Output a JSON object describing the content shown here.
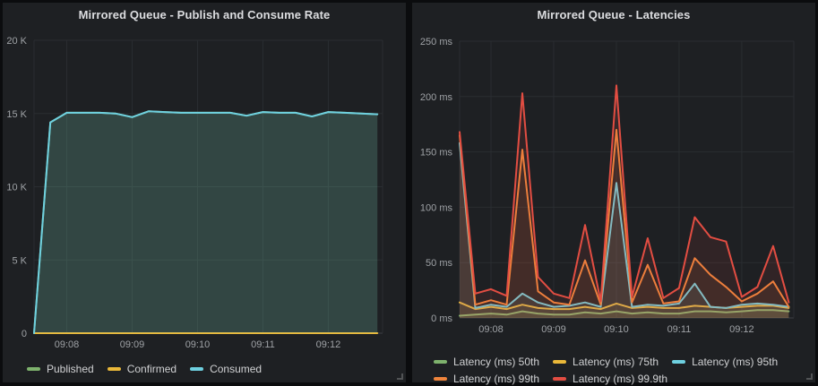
{
  "theme": {
    "page_bg": "#0b0c0e",
    "panel_bg": "#1e2023",
    "title_color": "#dcdde0",
    "axis_text_color": "#9fa2a6",
    "legend_text_color": "#d0d1d3",
    "grid_color": "#2a2d31",
    "axis_line_color": "#3e4145",
    "series_palette": {
      "green": "#7EB26D",
      "yellow": "#EAB839",
      "cyan": "#6ED0E0",
      "orange": "#EF843C",
      "red": "#E24D42"
    }
  },
  "panels": [
    {
      "title": "Mirrored Queue - Publish and Consume Rate"
    },
    {
      "title": "Mirrored Queue - Latencies"
    }
  ],
  "chart_data": [
    {
      "type": "area",
      "title": "Mirrored Queue - Publish and Consume Rate",
      "xlabel": "",
      "ylabel": "",
      "grid": true,
      "legend_position": "bottom",
      "x_domain_minutes": [
        7.5,
        12.83
      ],
      "x_times": [
        "09:07:30",
        "09:07:45",
        "09:08:00",
        "09:08:15",
        "09:08:30",
        "09:08:45",
        "09:09:00",
        "09:09:15",
        "09:09:30",
        "09:09:45",
        "09:10:00",
        "09:10:15",
        "09:10:30",
        "09:10:45",
        "09:11:00",
        "09:11:15",
        "09:11:30",
        "09:11:45",
        "09:12:00",
        "09:12:15",
        "09:12:30",
        "09:12:45"
      ],
      "x_minutes": [
        7.5,
        7.75,
        8,
        8.25,
        8.5,
        8.75,
        9,
        9.25,
        9.5,
        9.75,
        10,
        10.25,
        10.5,
        10.75,
        11,
        11.25,
        11.5,
        11.75,
        12,
        12.25,
        12.5,
        12.75
      ],
      "x_ticks": [
        {
          "minute": 8,
          "label": "09:08"
        },
        {
          "minute": 9,
          "label": "09:09"
        },
        {
          "minute": 10,
          "label": "09:10"
        },
        {
          "minute": 11,
          "label": "09:11"
        },
        {
          "minute": 12,
          "label": "09:12"
        }
      ],
      "ylim": [
        0,
        20000
      ],
      "y_ticks": [
        {
          "value": 0,
          "label": "0"
        },
        {
          "value": 5000,
          "label": "5 K"
        },
        {
          "value": 10000,
          "label": "10 K"
        },
        {
          "value": 15000,
          "label": "15 K"
        },
        {
          "value": 20000,
          "label": "20 K"
        }
      ],
      "series": [
        {
          "name": "Published",
          "color": "#7EB26D",
          "fill_opacity": 0.13,
          "values": [
            0,
            14400,
            15050,
            15050,
            15050,
            15000,
            14750,
            15150,
            15100,
            15050,
            15050,
            15050,
            15050,
            14850,
            15100,
            15050,
            15050,
            14800,
            15100,
            15050,
            15000,
            14950
          ]
        },
        {
          "name": "Confirmed",
          "color": "#EAB839",
          "fill_opacity": 0.13,
          "values": [
            0,
            0,
            0,
            0,
            0,
            0,
            0,
            0,
            0,
            0,
            0,
            0,
            0,
            0,
            0,
            0,
            0,
            0,
            0,
            0,
            0,
            0
          ]
        },
        {
          "name": "Consumed",
          "color": "#6ED0E0",
          "fill_opacity": 0.13,
          "values": [
            0,
            14400,
            15050,
            15050,
            15050,
            15000,
            14750,
            15150,
            15100,
            15050,
            15050,
            15050,
            15050,
            14850,
            15100,
            15050,
            15050,
            14800,
            15100,
            15050,
            15000,
            14950
          ]
        }
      ]
    },
    {
      "type": "area",
      "title": "Mirrored Queue - Latencies",
      "xlabel": "",
      "ylabel": "",
      "grid": true,
      "legend_position": "bottom",
      "x_domain_minutes": [
        7.5,
        12.83
      ],
      "x_times": [
        "09:07:30",
        "09:07:45",
        "09:08:00",
        "09:08:15",
        "09:08:30",
        "09:08:45",
        "09:09:00",
        "09:09:15",
        "09:09:30",
        "09:09:45",
        "09:10:00",
        "09:10:15",
        "09:10:30",
        "09:10:45",
        "09:11:00",
        "09:11:15",
        "09:11:30",
        "09:11:45",
        "09:12:00",
        "09:12:15",
        "09:12:30",
        "09:12:45"
      ],
      "x_minutes": [
        7.5,
        7.75,
        8,
        8.25,
        8.5,
        8.75,
        9,
        9.25,
        9.5,
        9.75,
        10,
        10.25,
        10.5,
        10.75,
        11,
        11.25,
        11.5,
        11.75,
        12,
        12.25,
        12.5,
        12.75
      ],
      "x_ticks": [
        {
          "minute": 8,
          "label": "09:08"
        },
        {
          "minute": 9,
          "label": "09:09"
        },
        {
          "minute": 10,
          "label": "09:10"
        },
        {
          "minute": 11,
          "label": "09:11"
        },
        {
          "minute": 12,
          "label": "09:12"
        }
      ],
      "ylim": [
        0,
        250
      ],
      "y_ticks": [
        {
          "value": 0,
          "label": "0 ms"
        },
        {
          "value": 50,
          "label": "50 ms"
        },
        {
          "value": 100,
          "label": "100 ms"
        },
        {
          "value": 150,
          "label": "150 ms"
        },
        {
          "value": 200,
          "label": "200 ms"
        },
        {
          "value": 250,
          "label": "250 ms"
        }
      ],
      "series": [
        {
          "name": "Latency (ms) 50th",
          "color": "#7EB26D",
          "fill_opacity": 0.1,
          "values": [
            2,
            3,
            4,
            3,
            6,
            4,
            3,
            3,
            5,
            4,
            6,
            4,
            5,
            4,
            4,
            6,
            6,
            5,
            6,
            7,
            7,
            6
          ]
        },
        {
          "name": "Latency (ms) 75th",
          "color": "#EAB839",
          "fill_opacity": 0.1,
          "values": [
            14,
            8,
            10,
            8,
            12,
            9,
            8,
            8,
            10,
            8,
            13,
            9,
            10,
            9,
            9,
            11,
            10,
            9,
            10,
            11,
            11,
            9
          ]
        },
        {
          "name": "Latency (ms) 95th",
          "color": "#6ED0E0",
          "fill_opacity": 0.1,
          "values": [
            158,
            9,
            12,
            10,
            22,
            14,
            10,
            11,
            14,
            10,
            122,
            10,
            12,
            11,
            13,
            31,
            10,
            9,
            12,
            13,
            12,
            10
          ]
        },
        {
          "name": "Latency (ms) 99th",
          "color": "#EF843C",
          "fill_opacity": 0.1,
          "values": [
            165,
            12,
            16,
            12,
            152,
            24,
            14,
            12,
            52,
            12,
            170,
            14,
            48,
            13,
            15,
            54,
            39,
            28,
            15,
            22,
            33,
            10
          ]
        },
        {
          "name": "Latency (ms) 99.9th",
          "color": "#E24D42",
          "fill_opacity": 0.1,
          "values": [
            168,
            22,
            26,
            20,
            203,
            37,
            22,
            18,
            84,
            15,
            210,
            19,
            72,
            18,
            27,
            91,
            73,
            69,
            19,
            28,
            65,
            14
          ]
        }
      ]
    }
  ]
}
